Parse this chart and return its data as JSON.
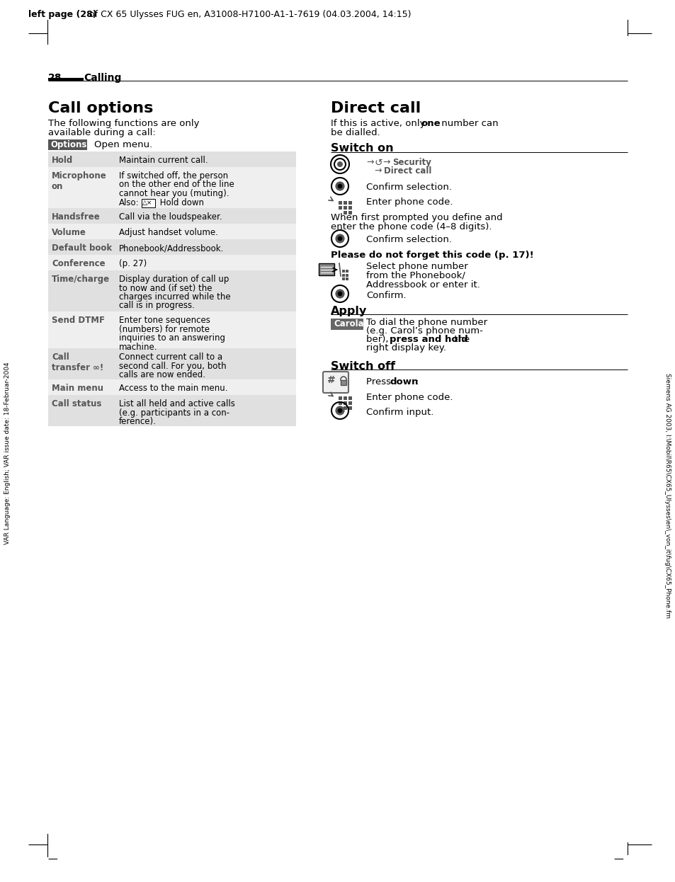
{
  "header_text_normal": " of CX 65 Ulysses FUG en, A31008-H7100-A1-1-7619 (04.03.2004, 14:15)",
  "header_text_bold": "left page (28)",
  "page_number": "28",
  "page_section": "Calling",
  "left_title": "Call options",
  "left_intro_1": "The following functions are only",
  "left_intro_2": "available during a call:",
  "options_label": "Options",
  "options_text": "Open menu.",
  "table_rows": [
    {
      "label": "Hold",
      "desc": [
        "Maintain current call."
      ],
      "tall": false
    },
    {
      "label": "Microphone\non",
      "desc": [
        "If switched off, the person",
        "on the other end of the line",
        "cannot hear you (muting).",
        "Also:  △×  Hold down"
      ],
      "tall": true
    },
    {
      "label": "Handsfree",
      "desc": [
        "Call via the loudspeaker."
      ],
      "tall": false
    },
    {
      "label": "Volume",
      "desc": [
        "Adjust handset volume."
      ],
      "tall": false
    },
    {
      "label": "Default book",
      "desc": [
        "Phonebook/Addressbook."
      ],
      "tall": false
    },
    {
      "label": "Conference",
      "desc": [
        "(p. 27)"
      ],
      "tall": false
    },
    {
      "label": "Time/charge",
      "desc": [
        "Display duration of call up",
        "to now and (if set) the",
        "charges incurred while the",
        "call is in progress."
      ],
      "tall": true
    },
    {
      "label": "Send DTMF",
      "desc": [
        "Enter tone sequences",
        "(numbers) for remote",
        "inquiries to an answering",
        "machine."
      ],
      "tall": true
    },
    {
      "label": "Call\ntransfer ∞!",
      "desc": [
        "Connect current call to a",
        "second call. For you, both",
        "calls are now ended."
      ],
      "tall": true
    },
    {
      "label": "Main menu",
      "desc": [
        "Access to the main menu."
      ],
      "tall": false
    },
    {
      "label": "Call status",
      "desc": [
        "List all held and active calls",
        "(e.g. participants in a con-",
        "ference)."
      ],
      "tall": true
    }
  ],
  "right_title": "Direct call",
  "sidebar_left": "VAR Language: English; VAR issue date: 18-Februar-2004",
  "sidebar_right": "Siemens AG 2003, I:\\Mobil\\R65\\CX65_Ulysses\\en\\_von_it\\fug\\CX65_Phone.fm",
  "bg_color": "#ffffff",
  "table_row_odd_bg": "#e0e0e0",
  "table_row_even_bg": "#efefef",
  "options_bg": "#555555",
  "options_fg": "#ffffff",
  "carola_bg": "#666666",
  "carola_fg": "#ffffff",
  "text_color": "#000000",
  "gray_label_color": "#555555",
  "line_color": "#000000"
}
